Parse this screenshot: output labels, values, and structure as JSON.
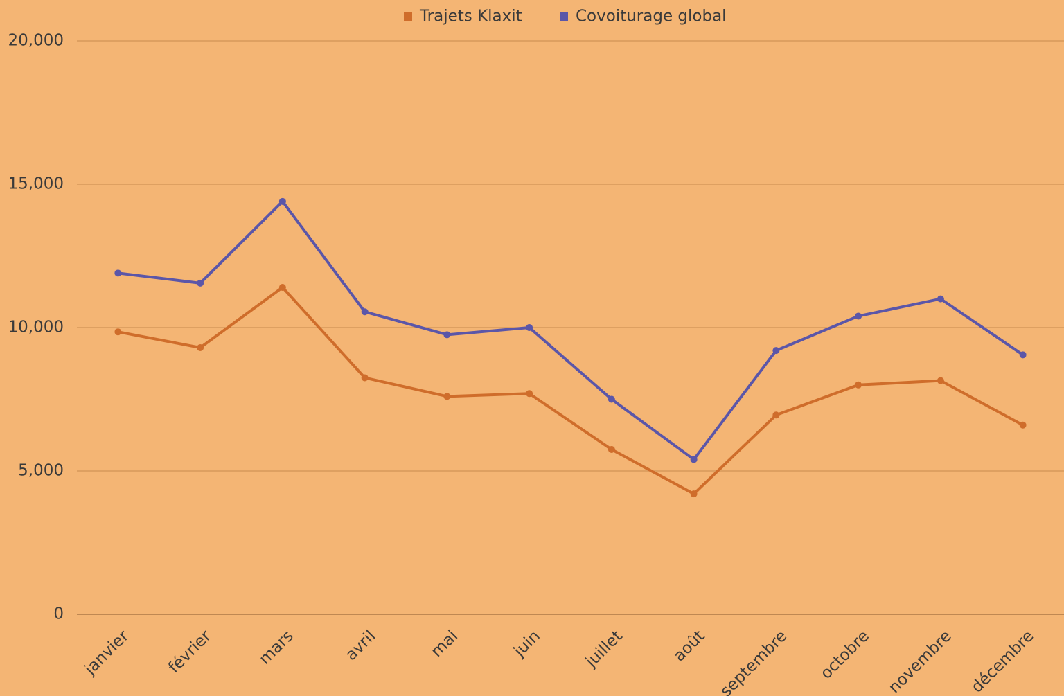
{
  "chart_data": {
    "type": "line",
    "categories": [
      "janvier",
      "février",
      "mars",
      "avril",
      "mai",
      "juin",
      "juillet",
      "août",
      "septembre",
      "octobre",
      "novembre",
      "décembre"
    ],
    "series": [
      {
        "name": "Trajets Klaxit",
        "color": "#cf6d2b",
        "values": [
          9850,
          9300,
          11400,
          8250,
          7600,
          7700,
          5750,
          4200,
          6950,
          8000,
          8150,
          6600
        ]
      },
      {
        "name": "Covoiturage global",
        "color": "#5b56a8",
        "values": [
          11900,
          11550,
          14400,
          10550,
          9750,
          10000,
          7500,
          5400,
          9200,
          10400,
          11000,
          9050
        ]
      }
    ],
    "ylim": [
      0,
      20000
    ],
    "yticks": [
      0,
      {
        "value": 5000,
        "label": "5,000"
      },
      {
        "value": 10000,
        "label": "10,000"
      },
      {
        "value": 15000,
        "label": "15,000"
      },
      {
        "value": 20000,
        "label": "20,000"
      }
    ],
    "grid": true,
    "legend": "top"
  }
}
